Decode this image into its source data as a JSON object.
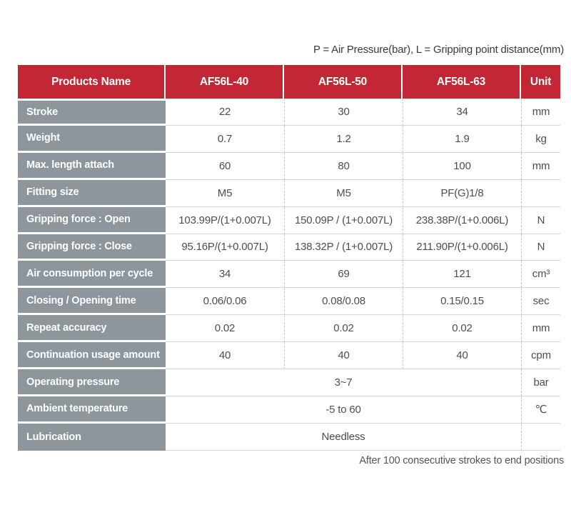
{
  "notes": {
    "top": "P = Air Pressure(bar), L = Gripping point distance(mm)",
    "bottom": "After 100 consecutive strokes to end positions"
  },
  "table": {
    "header": [
      "Products Name",
      "AF56L-40",
      "AF56L-50",
      "AF56L-63",
      "Unit"
    ],
    "rows": [
      {
        "label": "Stroke",
        "values": [
          "22",
          "30",
          "34"
        ],
        "unit": "mm",
        "span": false
      },
      {
        "label": "Weight",
        "values": [
          "0.7",
          "1.2",
          "1.9"
        ],
        "unit": "kg",
        "span": false
      },
      {
        "label": "Max. length attach",
        "values": [
          "60",
          "80",
          "100"
        ],
        "unit": "mm",
        "span": false
      },
      {
        "label": "Fitting size",
        "values": [
          "M5",
          "M5",
          "PF(G)1/8"
        ],
        "unit": "",
        "span": false
      },
      {
        "label": "Gripping force : Open",
        "values": [
          "103.99P/(1+0.007L)",
          "150.09P / (1+0.007L)",
          "238.38P/(1+0.006L)"
        ],
        "unit": "N",
        "span": false
      },
      {
        "label": "Gripping force : Close",
        "values": [
          "95.16P/(1+0.007L)",
          "138.32P / (1+0.007L)",
          "211.90P/(1+0.006L)"
        ],
        "unit": "N",
        "span": false
      },
      {
        "label": "Air consumption per cycle",
        "values": [
          "34",
          "69",
          "121"
        ],
        "unit": "cm³",
        "span": false
      },
      {
        "label": "Closing / Opening time",
        "values": [
          "0.06/0.06",
          "0.08/0.08",
          "0.15/0.15"
        ],
        "unit": "sec",
        "span": false
      },
      {
        "label": "Repeat accuracy",
        "values": [
          "0.02",
          "0.02",
          "0.02"
        ],
        "unit": "mm",
        "span": false
      },
      {
        "label": "Continuation usage amount",
        "values": [
          "40",
          "40",
          "40"
        ],
        "unit": "cpm",
        "span": false
      },
      {
        "label": "Operating pressure",
        "values": [
          "3~7"
        ],
        "unit": "bar",
        "span": true
      },
      {
        "label": "Ambient temperature",
        "values": [
          "-5 to 60"
        ],
        "unit": "℃",
        "span": true
      },
      {
        "label": "Lubrication",
        "values": [
          "Needless"
        ],
        "unit": "",
        "span": true
      }
    ]
  },
  "colors": {
    "header_red": "#c32735",
    "label_gray": "#8d969c",
    "cell_text": "#4d4e50",
    "dashed_line": "#c5c9cb",
    "row_line": "#d2d4d5",
    "note_text": "#3a3a3c",
    "note2_text": "#55565a"
  }
}
